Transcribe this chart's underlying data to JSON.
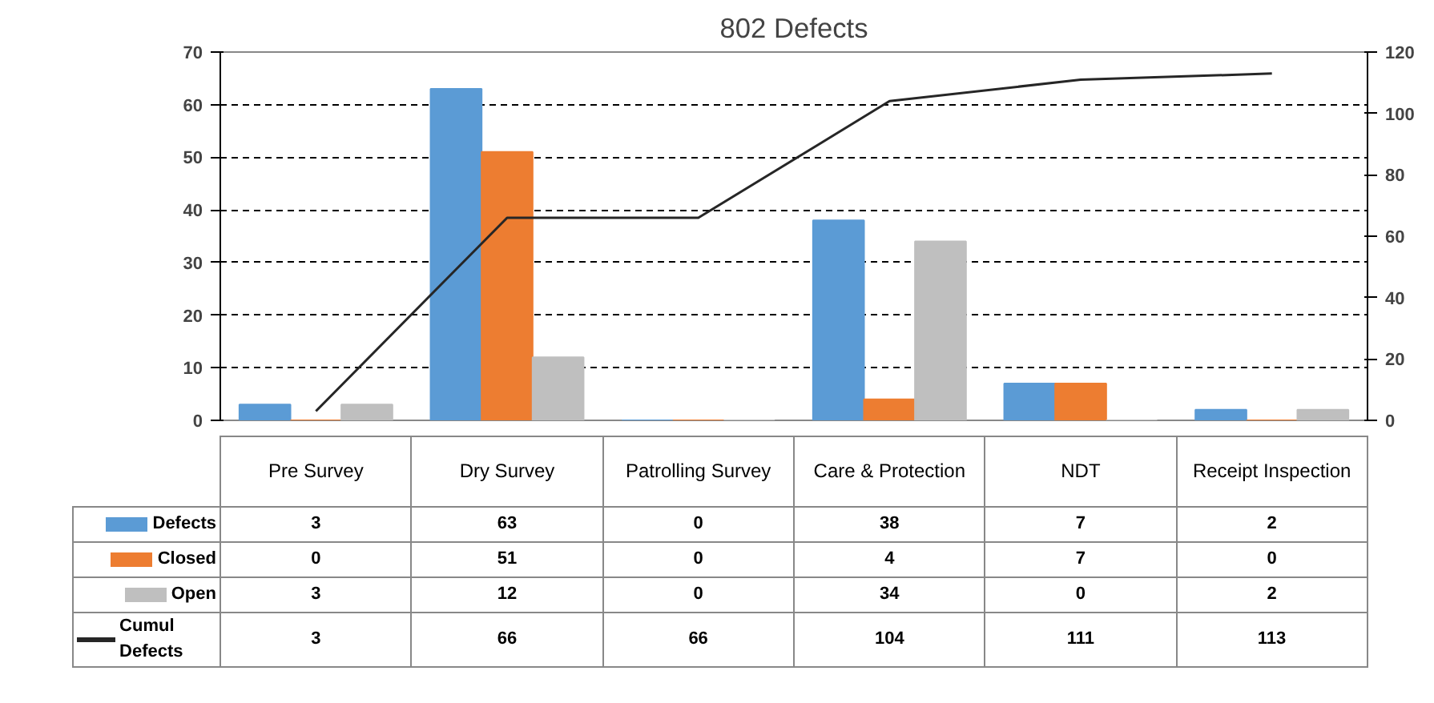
{
  "chart_data": {
    "type": "bar",
    "title": "802 Defects",
    "categories": [
      "Pre Survey",
      "Dry Survey",
      "Patrolling Survey",
      "Care & Protection",
      "NDT",
      "Receipt Inspection"
    ],
    "series": [
      {
        "name": "Defects",
        "color": "#5b9bd5",
        "values": [
          3,
          63,
          0,
          38,
          7,
          2
        ]
      },
      {
        "name": "Closed",
        "color": "#ed7d31",
        "values": [
          0,
          51,
          0,
          4,
          7,
          0
        ]
      },
      {
        "name": "Open",
        "color": "#bfbfbf",
        "values": [
          3,
          12,
          0,
          34,
          0,
          2
        ]
      },
      {
        "name": "Cumul Defects",
        "type": "line",
        "axis": "y2",
        "color": "#262626",
        "values": [
          3,
          66,
          66,
          104,
          111,
          113
        ]
      }
    ],
    "ylim": [
      0,
      70
    ],
    "yticks": [
      0,
      10,
      20,
      30,
      40,
      50,
      60,
      70
    ],
    "y2lim": [
      0,
      120
    ],
    "y2ticks": [
      0,
      20,
      40,
      60,
      80,
      100,
      120
    ],
    "grid": "y",
    "legend": "bottom",
    "data_labels": true
  }
}
